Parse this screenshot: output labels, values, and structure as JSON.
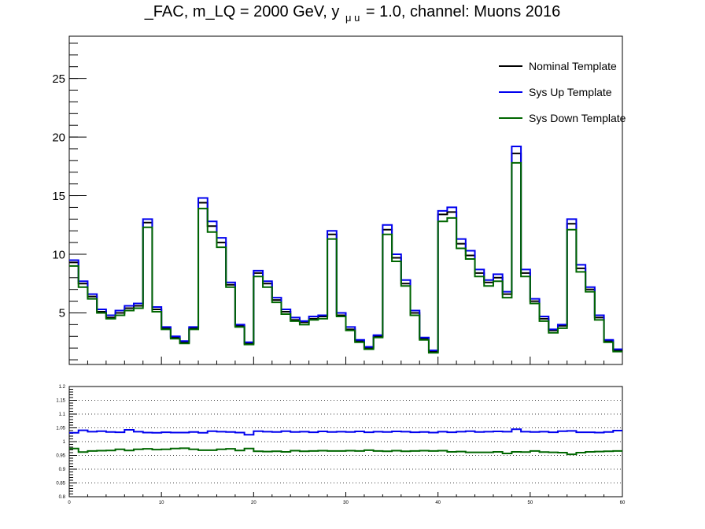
{
  "title": {
    "pre": "_FAC, m_LQ = 2000 GeV, y",
    "sub": "μ u",
    "post": "= 1.0, channel: Muons 2016"
  },
  "colors": {
    "nominal": "#000000",
    "up": "#0000ee",
    "down": "#006600",
    "grid": "#000000"
  },
  "chart_data": [
    {
      "type": "line",
      "style": "step-histogram",
      "xlim": [
        0,
        60
      ],
      "ylim": [
        0.6,
        28.6
      ],
      "grid": false,
      "legend_placement": "top-right",
      "x_ticks": [],
      "y_ticks": [
        5,
        10,
        15,
        20,
        25
      ],
      "series": [
        {
          "name": "Nominal Template",
          "color_key": "nominal",
          "values": [
            9.3,
            7.5,
            6.4,
            5.1,
            4.6,
            5.0,
            5.4,
            5.6,
            12.7,
            5.3,
            3.7,
            2.9,
            2.5,
            3.7,
            14.4,
            12.4,
            11.0,
            7.4,
            3.9,
            2.4,
            8.4,
            7.5,
            6.1,
            5.1,
            4.4,
            4.2,
            4.5,
            4.7,
            11.7,
            4.8,
            3.6,
            2.6,
            2.0,
            3.0,
            12.1,
            9.7,
            7.5,
            5.0,
            2.8,
            1.7,
            13.4,
            13.6,
            10.9,
            9.9,
            8.4,
            7.6,
            8.0,
            6.6,
            18.6,
            8.4,
            6.0,
            4.5,
            3.5,
            3.9,
            12.6,
            8.8,
            7.0,
            4.6,
            2.6,
            1.8
          ]
        },
        {
          "name": "Sys Up Template",
          "color_key": "up",
          "values": [
            9.5,
            7.7,
            6.6,
            5.3,
            4.8,
            5.2,
            5.6,
            5.8,
            13.0,
            5.5,
            3.8,
            3.0,
            2.6,
            3.8,
            14.8,
            12.8,
            11.4,
            7.6,
            4.0,
            2.5,
            8.6,
            7.7,
            6.3,
            5.3,
            4.6,
            4.3,
            4.7,
            4.8,
            12.0,
            5.0,
            3.8,
            2.7,
            2.1,
            3.1,
            12.5,
            10.0,
            7.8,
            5.2,
            2.9,
            1.8,
            13.7,
            14.0,
            11.3,
            10.3,
            8.7,
            7.8,
            8.3,
            6.8,
            19.2,
            8.7,
            6.2,
            4.7,
            3.6,
            4.0,
            13.0,
            9.1,
            7.2,
            4.8,
            2.7,
            1.9
          ]
        },
        {
          "name": "Sys Down Template",
          "color_key": "down",
          "values": [
            9.0,
            7.2,
            6.2,
            5.0,
            4.5,
            4.8,
            5.2,
            5.4,
            12.3,
            5.1,
            3.6,
            2.8,
            2.4,
            3.6,
            13.9,
            11.9,
            10.6,
            7.2,
            3.8,
            2.3,
            8.1,
            7.2,
            5.9,
            4.9,
            4.3,
            4.0,
            4.4,
            4.5,
            11.3,
            4.7,
            3.5,
            2.5,
            1.9,
            2.9,
            11.7,
            9.4,
            7.3,
            4.8,
            2.7,
            1.6,
            12.8,
            13.1,
            10.5,
            9.6,
            8.1,
            7.3,
            7.7,
            6.3,
            17.8,
            8.1,
            5.8,
            4.3,
            3.3,
            3.7,
            12.1,
            8.5,
            6.8,
            4.4,
            2.5,
            1.7
          ]
        }
      ]
    },
    {
      "type": "line",
      "style": "step-histogram",
      "xlim": [
        0,
        60
      ],
      "ylim": [
        0.8,
        1.2
      ],
      "grid": true,
      "x_ticks": [
        0,
        10,
        20,
        30,
        40,
        50,
        60
      ],
      "y_ticks": [
        0.8,
        0.85,
        0.9,
        0.95,
        1.0,
        1.05,
        1.1,
        1.15,
        1.2
      ],
      "y_tick_labels": [
        "0.8",
        "0.85",
        "0.9",
        "0.95",
        "1",
        "1.05",
        "1.1",
        "1.15",
        "1.2"
      ],
      "x_tick_labels": [
        "0",
        "10",
        "20",
        "30",
        "40",
        "50",
        "60"
      ],
      "series": [
        {
          "color_key": "up",
          "values": [
            1.032,
            1.041,
            1.036,
            1.038,
            1.035,
            1.034,
            1.043,
            1.036,
            1.033,
            1.032,
            1.034,
            1.033,
            1.033,
            1.035,
            1.032,
            1.038,
            1.036,
            1.035,
            1.033,
            1.025,
            1.038,
            1.036,
            1.035,
            1.038,
            1.035,
            1.036,
            1.034,
            1.037,
            1.035,
            1.036,
            1.035,
            1.037,
            1.034,
            1.036,
            1.035,
            1.037,
            1.036,
            1.034,
            1.035,
            1.033,
            1.036,
            1.034,
            1.036,
            1.038,
            1.035,
            1.036,
            1.037,
            1.036,
            1.045,
            1.036,
            1.035,
            1.036,
            1.034,
            1.038,
            1.039,
            1.034,
            1.034,
            1.033,
            1.035,
            1.04
          ]
        },
        {
          "color_key": "down",
          "values": [
            0.975,
            0.962,
            0.966,
            0.967,
            0.968,
            0.972,
            0.968,
            0.972,
            0.974,
            0.971,
            0.972,
            0.975,
            0.976,
            0.972,
            0.969,
            0.969,
            0.972,
            0.974,
            0.968,
            0.975,
            0.965,
            0.964,
            0.965,
            0.963,
            0.967,
            0.965,
            0.966,
            0.967,
            0.966,
            0.966,
            0.967,
            0.966,
            0.969,
            0.966,
            0.965,
            0.967,
            0.965,
            0.966,
            0.967,
            0.966,
            0.967,
            0.963,
            0.964,
            0.961,
            0.961,
            0.961,
            0.963,
            0.957,
            0.963,
            0.962,
            0.966,
            0.962,
            0.961,
            0.96,
            0.954,
            0.96,
            0.963,
            0.964,
            0.965,
            0.966
          ]
        }
      ]
    }
  ]
}
